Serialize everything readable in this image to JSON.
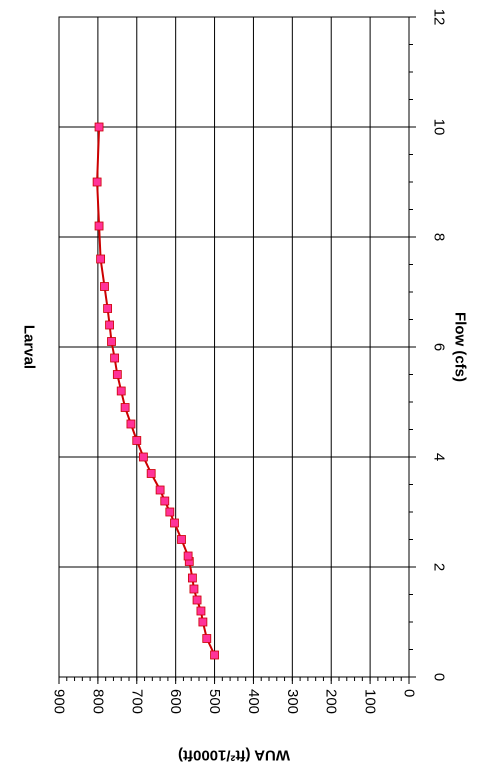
{
  "chart_data": {
    "type": "line",
    "title": "Larval",
    "xlabel": "Flow (cfs)",
    "ylabel": "WUA (ft²/1000ft)",
    "xlim": [
      0,
      12
    ],
    "ylim": [
      0,
      900
    ],
    "x_ticks": [
      0,
      2,
      4,
      6,
      8,
      10,
      12
    ],
    "y_ticks": [
      0,
      100,
      200,
      300,
      400,
      500,
      600,
      700,
      800,
      900
    ],
    "grid": true,
    "orientation": "rotated 90 degrees clockwise; x axis runs bottom-to-top on the right side",
    "series": [
      {
        "color": "#cc0000",
        "marker": "square",
        "marker_color": "#ff3399",
        "x": [
          0.4,
          0.7,
          1.0,
          1.2,
          1.4,
          1.6,
          1.8,
          2.1,
          2.2,
          2.5,
          2.8,
          3.0,
          3.2,
          3.4,
          3.7,
          4.0,
          4.3,
          4.6,
          4.9,
          5.2,
          5.5,
          5.8,
          6.1,
          6.4,
          6.7,
          7.1,
          7.6,
          8.2,
          9.0,
          10.0
        ],
        "y": [
          500,
          520,
          530,
          535,
          545,
          553,
          557,
          565,
          568,
          585,
          603,
          615,
          628,
          640,
          663,
          683,
          700,
          715,
          730,
          740,
          750,
          757,
          765,
          770,
          775,
          783,
          793,
          797,
          802,
          797
        ]
      }
    ]
  }
}
